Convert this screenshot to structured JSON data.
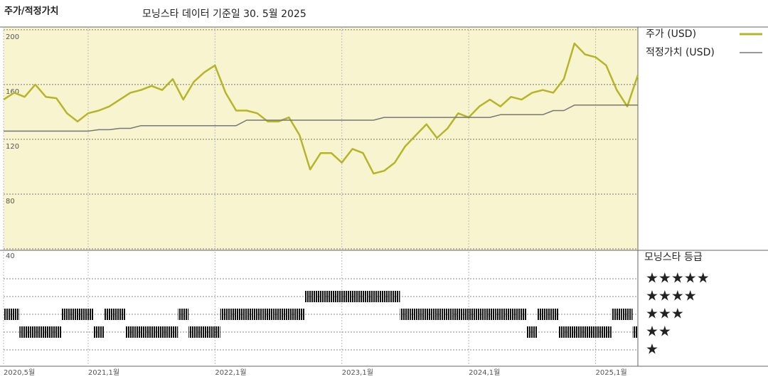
{
  "chart_data": {
    "type": "line",
    "title": "주가/적정가치",
    "subtitle": "모닝스타 데이터 기준일 30. 5월 2025",
    "x": [
      "2020-05",
      "2020-06",
      "2020-07",
      "2020-08",
      "2020-09",
      "2020-10",
      "2020-11",
      "2020-12",
      "2021-01",
      "2021-02",
      "2021-03",
      "2021-04",
      "2021-05",
      "2021-06",
      "2021-07",
      "2021-08",
      "2021-09",
      "2021-10",
      "2021-11",
      "2021-12",
      "2022-01",
      "2022-02",
      "2022-03",
      "2022-04",
      "2022-05",
      "2022-06",
      "2022-07",
      "2022-08",
      "2022-09",
      "2022-10",
      "2022-11",
      "2022-12",
      "2023-01",
      "2023-02",
      "2023-03",
      "2023-04",
      "2023-05",
      "2023-06",
      "2023-07",
      "2023-08",
      "2023-09",
      "2023-10",
      "2023-11",
      "2023-12",
      "2024-01",
      "2024-02",
      "2024-03",
      "2024-04",
      "2024-05",
      "2024-06",
      "2024-07",
      "2024-08",
      "2024-09",
      "2024-10",
      "2024-11",
      "2024-12",
      "2025-01",
      "2025-02",
      "2025-03",
      "2025-04",
      "2025-05"
    ],
    "series": [
      {
        "name": "주가 (USD)",
        "color": "#b5b52a",
        "values": [
          149,
          154,
          151,
          160,
          151,
          150,
          139,
          133,
          139,
          141,
          144,
          149,
          154,
          156,
          159,
          156,
          164,
          149,
          162,
          169,
          174,
          154,
          141,
          141,
          139,
          133,
          133,
          136,
          123,
          98,
          110,
          110,
          103,
          113,
          110,
          95,
          97,
          103,
          115,
          123,
          131,
          121,
          128,
          139,
          136,
          144,
          149,
          144,
          151,
          149,
          154,
          156,
          154,
          164,
          190,
          182,
          180,
          174,
          156,
          144,
          167
        ]
      },
      {
        "name": "적정가치 (USD)",
        "color": "#777777",
        "values": [
          126,
          126,
          126,
          126,
          126,
          126,
          126,
          126,
          126,
          127,
          127,
          128,
          128,
          130,
          130,
          130,
          130,
          130,
          130,
          130,
          130,
          130,
          130,
          134,
          134,
          134,
          134,
          134,
          134,
          134,
          134,
          134,
          134,
          134,
          134,
          134,
          136,
          136,
          136,
          136,
          136,
          136,
          136,
          136,
          136,
          136,
          136,
          138,
          138,
          138,
          138,
          138,
          141,
          141,
          145,
          145,
          145,
          145,
          145,
          145,
          145
        ]
      }
    ],
    "xlim": [
      "2020-05",
      "2025-05"
    ],
    "xticks": [
      {
        "value": "2020-05",
        "label": "2020,5월"
      },
      {
        "value": "2021-01",
        "label": "2021,1월"
      },
      {
        "value": "2022-01",
        "label": "2022,1월"
      },
      {
        "value": "2023-01",
        "label": "2023,1월"
      },
      {
        "value": "2024-01",
        "label": "2024,1월"
      },
      {
        "value": "2025-01",
        "label": "2025,1월"
      }
    ],
    "ylim": [
      40,
      202
    ],
    "yticks": [
      40,
      80,
      120,
      160,
      200
    ],
    "grid": true,
    "ratings": {
      "title": "모닝스타 등급",
      "labels": [
        "★★★★★",
        "★★★★",
        "★★★",
        "★★",
        "★"
      ],
      "values": [
        3,
        3,
        2,
        2,
        2,
        2,
        3,
        3,
        3,
        2,
        3,
        3,
        2,
        2,
        2,
        2,
        2,
        3,
        2,
        2,
        2,
        3,
        3,
        3,
        3,
        3,
        3,
        3,
        3,
        4,
        4,
        4,
        4,
        4,
        4,
        4,
        4,
        4,
        3,
        3,
        3,
        3,
        3,
        3,
        3,
        3,
        3,
        3,
        3,
        3,
        2,
        3,
        3,
        2,
        2,
        2,
        2,
        2,
        3,
        3,
        2
      ]
    }
  }
}
